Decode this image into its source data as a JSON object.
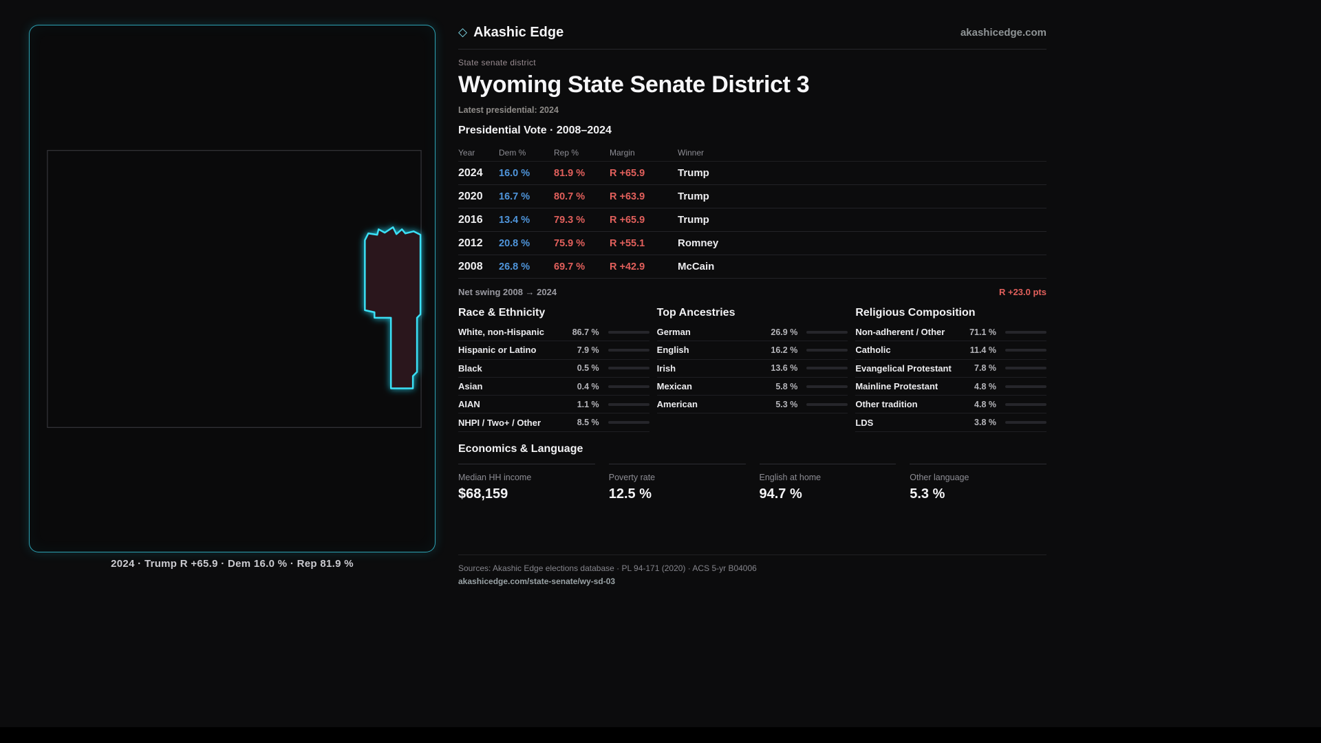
{
  "brand": {
    "name": "Akashic Edge",
    "domain": "akashicedge.com"
  },
  "header": {
    "kicker": "State senate district",
    "title": "Wyoming State Senate District 3",
    "latest": "Latest presidential: 2024"
  },
  "map": {
    "caption": "2024 · Trump R +65.9 · Dem 16.0 % · Rep 81.9 %"
  },
  "vote_table": {
    "title": "Presidential Vote · 2008–2024",
    "columns": [
      "Year",
      "Dem %",
      "Rep %",
      "Margin",
      "Winner"
    ],
    "rows": [
      {
        "year": "2024",
        "dem": "16.0 %",
        "rep": "81.9 %",
        "margin": "R +65.9",
        "winner": "Trump"
      },
      {
        "year": "2020",
        "dem": "16.7 %",
        "rep": "80.7 %",
        "margin": "R +63.9",
        "winner": "Trump"
      },
      {
        "year": "2016",
        "dem": "13.4 %",
        "rep": "79.3 %",
        "margin": "R +65.9",
        "winner": "Trump"
      },
      {
        "year": "2012",
        "dem": "20.8 %",
        "rep": "75.9 %",
        "margin": "R +55.1",
        "winner": "Romney"
      },
      {
        "year": "2008",
        "dem": "26.8 %",
        "rep": "69.7 %",
        "margin": "R +42.9",
        "winner": "McCain"
      }
    ]
  },
  "net_swing": {
    "label": "Net swing 2008 → 2024",
    "value": "R +23.0 pts"
  },
  "race": {
    "title": "Race & Ethnicity",
    "items": [
      {
        "label": "White, non-Hispanic",
        "value": "86.7 %",
        "pct": 86.7
      },
      {
        "label": "Hispanic or Latino",
        "value": "7.9 %",
        "pct": 7.9
      },
      {
        "label": "Black",
        "value": "0.5 %",
        "pct": 0.5
      },
      {
        "label": "Asian",
        "value": "0.4 %",
        "pct": 0.4
      },
      {
        "label": "AIAN",
        "value": "1.1 %",
        "pct": 1.1
      },
      {
        "label": "NHPI / Two+ / Other",
        "value": "8.5 %",
        "pct": 8.5
      }
    ]
  },
  "ancestries": {
    "title": "Top Ancestries",
    "items": [
      {
        "label": "German",
        "value": "26.9 %",
        "pct": 26.9
      },
      {
        "label": "English",
        "value": "16.2 %",
        "pct": 16.2
      },
      {
        "label": "Irish",
        "value": "13.6 %",
        "pct": 13.6
      },
      {
        "label": "Mexican",
        "value": "5.8 %",
        "pct": 5.8
      },
      {
        "label": "American",
        "value": "5.3 %",
        "pct": 5.3
      }
    ]
  },
  "religion": {
    "title": "Religious Composition",
    "items": [
      {
        "label": "Non-adherent / Other",
        "value": "71.1 %",
        "pct": 71.1
      },
      {
        "label": "Catholic",
        "value": "11.4 %",
        "pct": 11.4
      },
      {
        "label": "Evangelical Protestant",
        "value": "7.8 %",
        "pct": 7.8
      },
      {
        "label": "Mainline Protestant",
        "value": "4.8 %",
        "pct": 4.8
      },
      {
        "label": "Other tradition",
        "value": "4.8 %",
        "pct": 4.8
      },
      {
        "label": "LDS",
        "value": "3.8 %",
        "pct": 3.8
      }
    ]
  },
  "economics": {
    "title": "Economics & Language",
    "stats": [
      {
        "label": "Median HH income",
        "value": "$68,159"
      },
      {
        "label": "Poverty rate",
        "value": "12.5 %"
      },
      {
        "label": "English at home",
        "value": "94.7 %"
      },
      {
        "label": "Other language",
        "value": "5.3 %"
      }
    ]
  },
  "footer": {
    "sources": "Sources: Akashic Edge elections database · PL 94-171 (2020) · ACS 5-yr B04006",
    "link": "akashicedge.com/state-senate/wy-sd-03"
  },
  "colors": {
    "accent_cyan": "#3ae0f6",
    "dem_blue": "#4f95db",
    "rep_red": "#e2605c",
    "district_fill": "#2a161c"
  },
  "chart_data": [
    {
      "type": "table",
      "title": "Presidential Vote · 2008–2024",
      "columns": [
        "Year",
        "Dem %",
        "Rep %",
        "Margin",
        "Winner"
      ],
      "rows": [
        [
          "2024",
          16.0,
          81.9,
          "R +65.9",
          "Trump"
        ],
        [
          "2020",
          16.7,
          80.7,
          "R +63.9",
          "Trump"
        ],
        [
          "2016",
          13.4,
          79.3,
          "R +65.9",
          "Trump"
        ],
        [
          "2012",
          20.8,
          75.9,
          "R +55.1",
          "Romney"
        ],
        [
          "2008",
          26.8,
          69.7,
          "R +42.9",
          "McCain"
        ]
      ],
      "annotations": [
        "Net swing 2008 → 2024: R +23.0 pts"
      ]
    },
    {
      "type": "bar",
      "title": "Race & Ethnicity",
      "categories": [
        "White, non-Hispanic",
        "Hispanic or Latino",
        "Black",
        "Asian",
        "AIAN",
        "NHPI / Two+ / Other"
      ],
      "values": [
        86.7,
        7.9,
        0.5,
        0.4,
        1.1,
        8.5
      ],
      "xlabel": "",
      "ylabel": "%",
      "xlim": [
        0,
        100
      ]
    },
    {
      "type": "bar",
      "title": "Top Ancestries",
      "categories": [
        "German",
        "English",
        "Irish",
        "Mexican",
        "American"
      ],
      "values": [
        26.9,
        16.2,
        13.6,
        5.8,
        5.3
      ],
      "xlabel": "",
      "ylabel": "%",
      "xlim": [
        0,
        100
      ]
    },
    {
      "type": "bar",
      "title": "Religious Composition",
      "categories": [
        "Non-adherent / Other",
        "Catholic",
        "Evangelical Protestant",
        "Mainline Protestant",
        "Other tradition",
        "LDS"
      ],
      "values": [
        71.1,
        11.4,
        7.8,
        4.8,
        4.8,
        3.8
      ],
      "xlabel": "",
      "ylabel": "%",
      "xlim": [
        0,
        100
      ]
    }
  ]
}
